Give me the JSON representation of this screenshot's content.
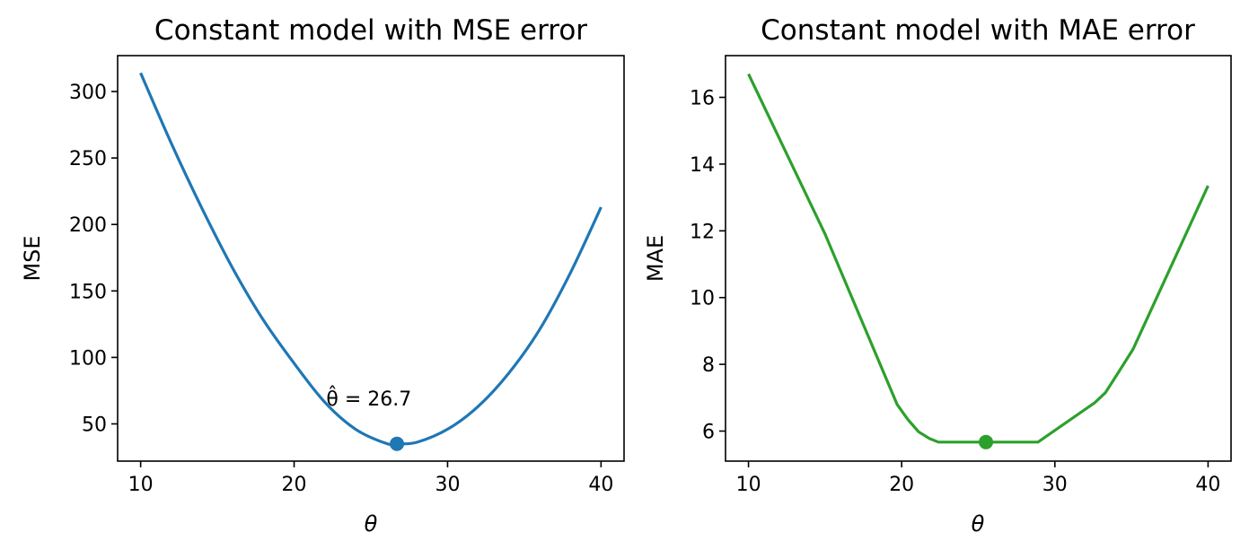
{
  "chart_data": [
    {
      "type": "line",
      "title": "Constant model with MSE error",
      "xlabel": "θ",
      "ylabel": "MSE",
      "xlim": [
        8.5,
        41.5
      ],
      "ylim": [
        22,
        327
      ],
      "xticks": [
        10,
        20,
        30,
        40
      ],
      "yticks": [
        50,
        100,
        150,
        200,
        250,
        300
      ],
      "grid": false,
      "color": "#1f77b4",
      "series": [
        {
          "x": [
            10,
            12,
            14,
            16,
            18,
            20,
            22,
            24,
            26,
            26.7,
            28,
            30,
            32,
            34,
            36,
            38,
            40
          ],
          "values": [
            314,
            261,
            212,
            167,
            128,
            95.6,
            66.3,
            46,
            35.3,
            35,
            36.2,
            46,
            63.2,
            88.3,
            121,
            163.5,
            213
          ]
        }
      ],
      "marker": {
        "x": 26.7,
        "y": 35
      },
      "annotation": "θ̂ = 26.7",
      "annotation_pos": {
        "x": 22.1,
        "y": 64
      }
    },
    {
      "type": "line",
      "title": "Constant model with MAE error",
      "xlabel": "θ",
      "ylabel": "MAE",
      "xlim": [
        8.5,
        41.5
      ],
      "ylim": [
        5.1,
        17.25
      ],
      "xticks": [
        10,
        20,
        30,
        40
      ],
      "yticks": [
        6,
        8,
        10,
        12,
        14,
        16
      ],
      "grid": false,
      "color": "#2ca02c",
      "series": [
        {
          "x": [
            10,
            15,
            19.7,
            20.4,
            21.1,
            21.8,
            22.4,
            28.9,
            32.6,
            33.3,
            34.2,
            35.1,
            40
          ],
          "values": [
            16.7,
            11.9,
            6.8,
            6.35,
            5.98,
            5.78,
            5.67,
            5.67,
            6.85,
            7.15,
            7.8,
            8.45,
            13.35
          ]
        }
      ],
      "marker": {
        "x": 25.5,
        "y": 5.67
      }
    }
  ]
}
